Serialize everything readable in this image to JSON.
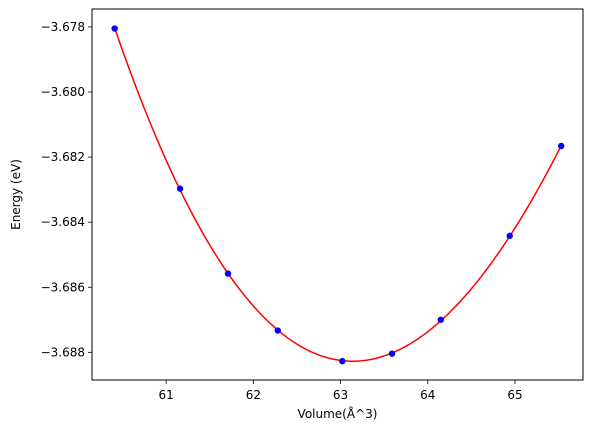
{
  "chart_data": {
    "type": "scatter",
    "title": "",
    "xlabel": "Volume(Å^3)",
    "ylabel": "Energy (eV)",
    "xlim": [
      60.15,
      65.78
    ],
    "ylim": [
      -3.68885,
      -3.67745
    ],
    "x_ticks": [
      61,
      62,
      63,
      64,
      65
    ],
    "x_tick_labels": [
      "61",
      "62",
      "63",
      "64",
      "65"
    ],
    "y_ticks": [
      -3.678,
      -3.68,
      -3.682,
      -3.684,
      -3.686,
      -3.688
    ],
    "y_tick_labels": [
      "−3.678",
      "−3.680",
      "−3.682",
      "−3.684",
      "−3.686",
      "−3.688"
    ],
    "grid": false,
    "series": [
      {
        "kind": "points",
        "color": "#0000ff",
        "x": [
          60.41,
          61.16,
          61.71,
          62.28,
          63.02,
          63.59,
          64.15,
          64.94,
          65.53
        ],
        "y": [
          -3.67805,
          -3.68297,
          -3.68558,
          -3.68733,
          -3.68827,
          -3.68804,
          -3.687,
          -3.68442,
          -3.68166
        ]
      },
      {
        "kind": "fit-curve",
        "color": "#ff0000",
        "fit": "polynomial-through-points"
      }
    ]
  }
}
